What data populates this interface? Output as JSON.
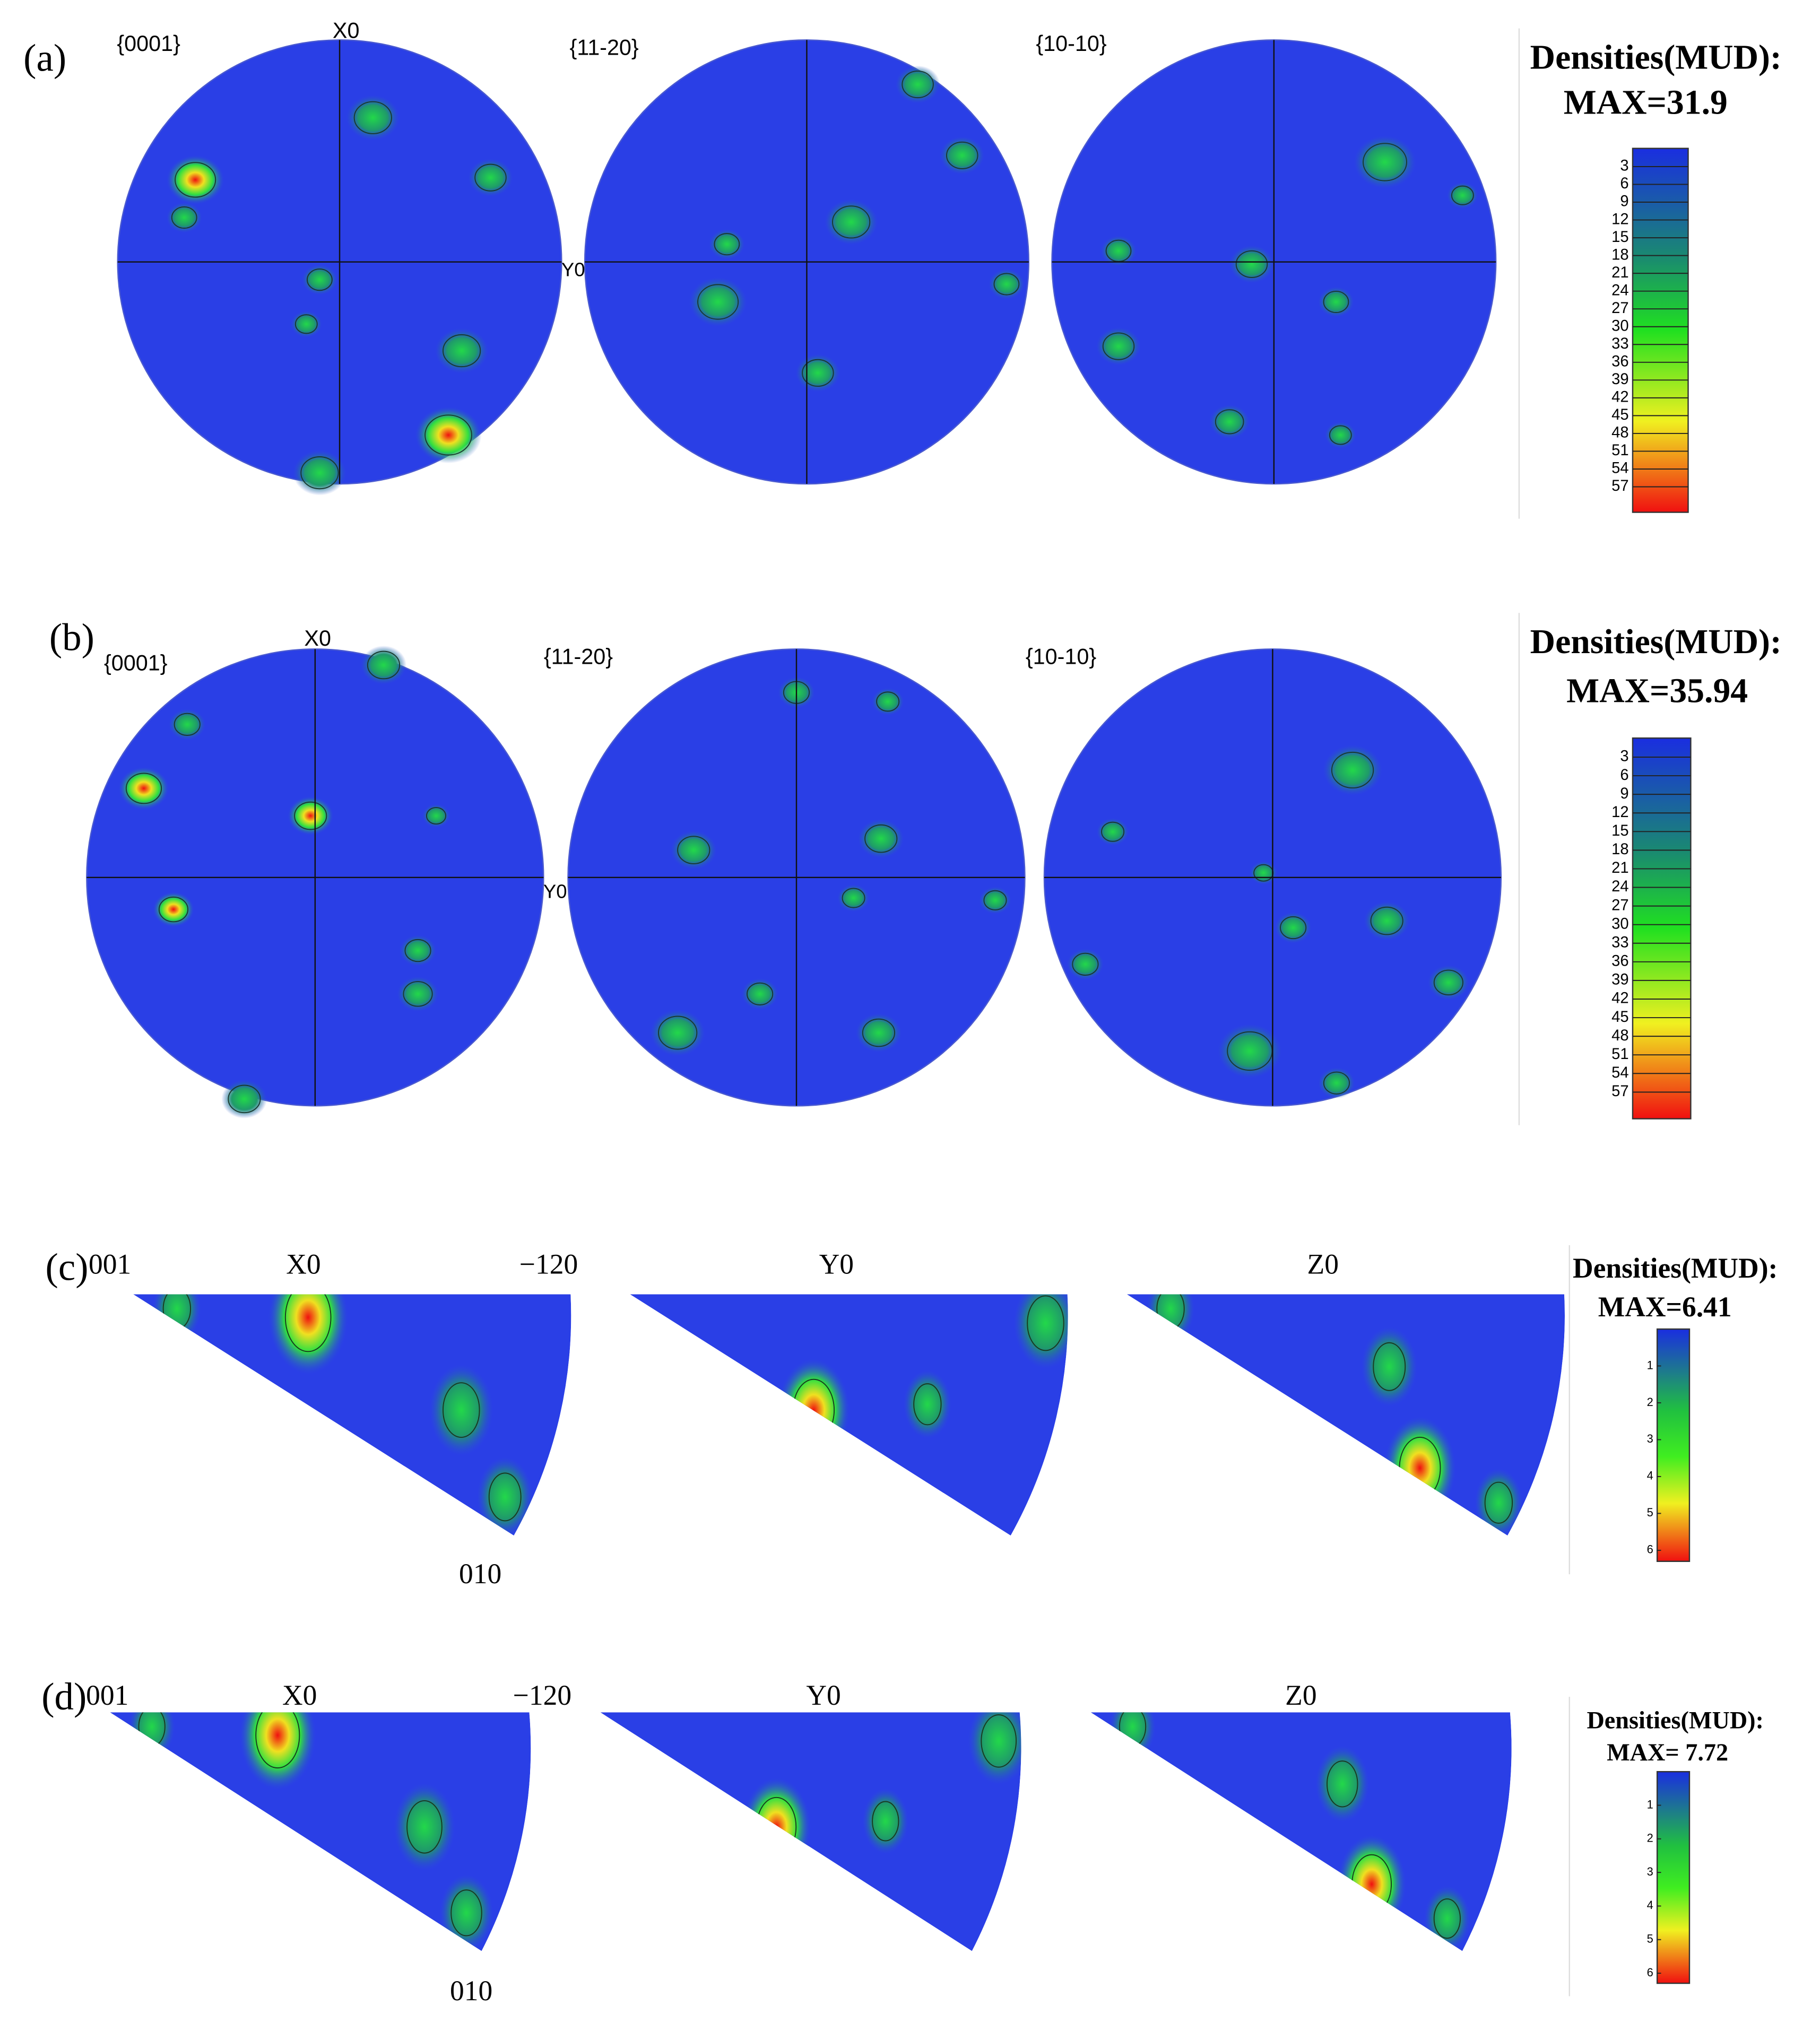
{
  "panels": [
    {
      "label": "(a)",
      "figures": [
        "{0001}",
        "{11-20}",
        "{10-10}"
      ],
      "axis_labels": [
        "X0",
        "Y0"
      ],
      "legend": {
        "title": "Densities(MUD):",
        "max": "MAX=31.9",
        "ticks": [
          3,
          6,
          9,
          12,
          15,
          18,
          21,
          24,
          27,
          30,
          33,
          36,
          39,
          42,
          45,
          48,
          51,
          54,
          57
        ]
      }
    },
    {
      "label": "(b)",
      "figures": [
        "{0001}",
        "{11-20}",
        "{10-10}"
      ],
      "axis_labels": [
        "X0",
        "Y0"
      ],
      "legend": {
        "title": "Densities(MUD):",
        "max": "MAX=35.94",
        "ticks": [
          3,
          6,
          9,
          12,
          15,
          18,
          21,
          24,
          27,
          30,
          33,
          36,
          39,
          42,
          45,
          48,
          51,
          54,
          57
        ]
      }
    },
    {
      "label": "(c)",
      "figures": [
        "X0",
        "Y0",
        "Z0"
      ],
      "corner_labels": [
        "001",
        "−120",
        "010"
      ],
      "legend": {
        "title": "Densities(MUD):",
        "max": "MAX=6.41",
        "ticks": [
          1,
          2,
          3,
          4,
          5,
          6
        ]
      }
    },
    {
      "label": "(d)",
      "figures": [
        "X0",
        "Y0",
        "Z0"
      ],
      "corner_labels": [
        "001",
        "−120",
        "010"
      ],
      "legend": {
        "title": "Densities(MUD):",
        "max": "MAX= 7.72",
        "ticks": [
          1,
          2,
          3,
          4,
          5,
          6
        ]
      }
    }
  ]
}
